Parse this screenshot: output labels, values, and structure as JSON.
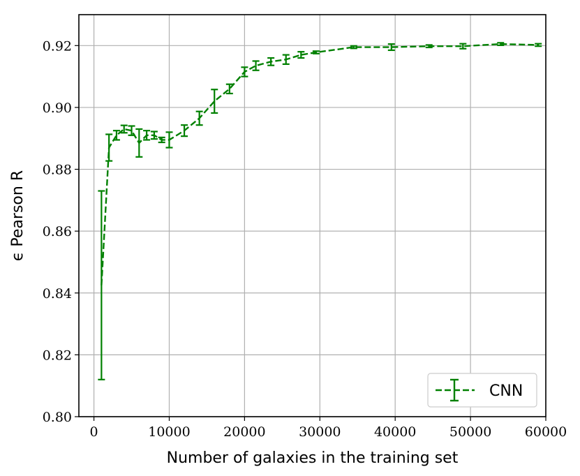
{
  "chart_data": {
    "type": "line",
    "title": "",
    "xlabel": "Number of galaxies in the training set",
    "ylabel": "ϵ Pearson R",
    "xlim": [
      -2000,
      60000
    ],
    "ylim": [
      0.8,
      0.93
    ],
    "xticks": [
      0,
      10000,
      20000,
      30000,
      40000,
      50000,
      60000
    ],
    "xtick_labels": [
      "0",
      "10000",
      "20000",
      "30000",
      "40000",
      "50000",
      "60000"
    ],
    "yticks": [
      0.8,
      0.82,
      0.84,
      0.86,
      0.88,
      0.9,
      0.92
    ],
    "ytick_labels": [
      "0.80",
      "0.82",
      "0.84",
      "0.86",
      "0.88",
      "0.90",
      "0.92"
    ],
    "grid": true,
    "legend_position": "bottom-right",
    "series": [
      {
        "name": "CNN",
        "color": "#008000",
        "line_style": "dashed",
        "x": [
          1000,
          2000,
          3000,
          4000,
          5000,
          6000,
          7000,
          8000,
          9000,
          10000,
          12000,
          14000,
          16000,
          18000,
          20000,
          21500,
          23500,
          25500,
          27500,
          29500,
          34500,
          39500,
          44500,
          49000,
          54000,
          59000
        ],
        "y": [
          0.8425,
          0.887,
          0.891,
          0.893,
          0.8925,
          0.8885,
          0.891,
          0.891,
          0.8895,
          0.8895,
          0.8925,
          0.8965,
          0.902,
          0.906,
          0.9115,
          0.9135,
          0.9148,
          0.9155,
          0.917,
          0.9178,
          0.9195,
          0.9195,
          0.9198,
          0.9198,
          0.9205,
          0.9202
        ],
        "yerr": [
          0.0305,
          0.0043,
          0.0015,
          0.0012,
          0.0015,
          0.0045,
          0.0015,
          0.0012,
          0.0008,
          0.0025,
          0.0018,
          0.0022,
          0.0038,
          0.0015,
          0.0015,
          0.0015,
          0.0012,
          0.0015,
          0.001,
          0.0004,
          0.0004,
          0.001,
          0.0004,
          0.0008,
          0.0004,
          0.0004
        ]
      }
    ]
  }
}
